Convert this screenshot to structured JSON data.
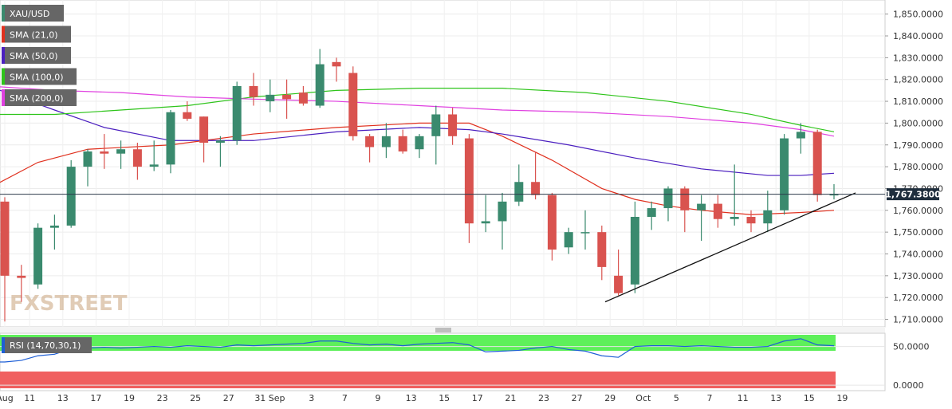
{
  "chart_data": {
    "type": "candlestick",
    "symbol": "XAU/USD",
    "last_price_label": "1,767.3800",
    "last_price": 1767.38,
    "watermark": "FXSTREET",
    "colors": {
      "up": "#3a8a6e",
      "down": "#d9534f",
      "sma21": "#e0301e",
      "sma50": "#4b1fbf",
      "sma100": "#2ec41a",
      "sma200": "#e040e0",
      "rsi": "#1e5fd6",
      "rsi_overbought_zone": "#5ef05a",
      "rsi_oversold_zone": "#f06060",
      "trendline": "#111111",
      "legend_bg": "#666666"
    },
    "legend": [
      {
        "key": "symbol",
        "label": "XAU/USD",
        "color": "#3a8a6e"
      },
      {
        "key": "sma21",
        "label": "SMA (21,0)",
        "color": "#e0301e"
      },
      {
        "key": "sma50",
        "label": "SMA (50,0)",
        "color": "#4b1fbf"
      },
      {
        "key": "sma100",
        "label": "SMA (100,0)",
        "color": "#2ec41a"
      },
      {
        "key": "sma200",
        "label": "SMA (200,0)",
        "color": "#e040e0"
      }
    ],
    "rsi_label": "RSI (14,70,30,1)",
    "y_ticks": [
      "1,710.0000",
      "1,720.0000",
      "1,730.0000",
      "1,740.0000",
      "1,750.0000",
      "1,760.0000",
      "1,770.0000",
      "1,780.0000",
      "1,790.0000",
      "1,800.0000",
      "1,810.0000",
      "1,820.0000",
      "1,830.0000",
      "1,840.0000",
      "1,850.0000"
    ],
    "y_tick_values": [
      1710,
      1720,
      1730,
      1740,
      1750,
      1760,
      1770,
      1780,
      1790,
      1800,
      1810,
      1820,
      1830,
      1840,
      1850
    ],
    "ylim": [
      1708,
      1855
    ],
    "rsi_ticks": [
      "0.0000",
      "50.0000"
    ],
    "rsi_tick_values": [
      0,
      50
    ],
    "rsi_lim": [
      -5,
      65
    ],
    "x_ticks": [
      {
        "label": "Aug",
        "i": 0
      },
      {
        "label": "11",
        "i": 1.5
      },
      {
        "label": "13",
        "i": 3.5
      },
      {
        "label": "17",
        "i": 5.5
      },
      {
        "label": "19",
        "i": 7.5
      },
      {
        "label": "23",
        "i": 9.5
      },
      {
        "label": "25",
        "i": 11.5
      },
      {
        "label": "27",
        "i": 13.5
      },
      {
        "label": "31",
        "i": 15.4
      },
      {
        "label": "Sep",
        "i": 16.4
      },
      {
        "label": "3",
        "i": 18.5
      },
      {
        "label": "7",
        "i": 20.5
      },
      {
        "label": "9",
        "i": 22.5
      },
      {
        "label": "13",
        "i": 24.5
      },
      {
        "label": "15",
        "i": 26.5
      },
      {
        "label": "17",
        "i": 28.5
      },
      {
        "label": "21",
        "i": 30.5
      },
      {
        "label": "23",
        "i": 32.5
      },
      {
        "label": "27",
        "i": 34.5
      },
      {
        "label": "29",
        "i": 36.5
      },
      {
        "label": "Oct",
        "i": 38.5
      },
      {
        "label": "5",
        "i": 40.5
      },
      {
        "label": "7",
        "i": 42.5
      },
      {
        "label": "11",
        "i": 44.5
      },
      {
        "label": "13",
        "i": 46.5
      },
      {
        "label": "15",
        "i": 48.5
      },
      {
        "label": "19",
        "i": 50.5
      }
    ],
    "candles": [
      {
        "o": 1764,
        "h": 1766,
        "l": 1709,
        "c": 1730
      },
      {
        "o": 1730,
        "h": 1735,
        "l": 1718,
        "c": 1729
      },
      {
        "o": 1726,
        "h": 1754,
        "l": 1724,
        "c": 1752
      },
      {
        "o": 1752,
        "h": 1758,
        "l": 1742,
        "c": 1753
      },
      {
        "o": 1753,
        "h": 1783,
        "l": 1752,
        "c": 1780
      },
      {
        "o": 1780,
        "h": 1788,
        "l": 1771,
        "c": 1787
      },
      {
        "o": 1787,
        "h": 1795,
        "l": 1779,
        "c": 1786
      },
      {
        "o": 1786,
        "h": 1792,
        "l": 1779,
        "c": 1788
      },
      {
        "o": 1788,
        "h": 1791,
        "l": 1774,
        "c": 1780
      },
      {
        "o": 1780,
        "h": 1792,
        "l": 1778,
        "c": 1781
      },
      {
        "o": 1781,
        "h": 1806,
        "l": 1777,
        "c": 1805
      },
      {
        "o": 1805,
        "h": 1810,
        "l": 1801,
        "c": 1802
      },
      {
        "o": 1803,
        "h": 1803,
        "l": 1782,
        "c": 1791
      },
      {
        "o": 1791,
        "h": 1794,
        "l": 1780,
        "c": 1792
      },
      {
        "o": 1792,
        "h": 1819,
        "l": 1790,
        "c": 1817
      },
      {
        "o": 1817,
        "h": 1823,
        "l": 1808,
        "c": 1812
      },
      {
        "o": 1810,
        "h": 1820,
        "l": 1805,
        "c": 1813
      },
      {
        "o": 1813,
        "h": 1820,
        "l": 1802,
        "c": 1811
      },
      {
        "o": 1814,
        "h": 1817,
        "l": 1808,
        "c": 1809
      },
      {
        "o": 1808,
        "h": 1834,
        "l": 1807,
        "c": 1827
      },
      {
        "o": 1828,
        "h": 1830,
        "l": 1819,
        "c": 1826
      },
      {
        "o": 1823,
        "h": 1826,
        "l": 1792,
        "c": 1794
      },
      {
        "o": 1794,
        "h": 1795,
        "l": 1782,
        "c": 1789
      },
      {
        "o": 1789,
        "h": 1800,
        "l": 1784,
        "c": 1794
      },
      {
        "o": 1794,
        "h": 1797,
        "l": 1786,
        "c": 1787
      },
      {
        "o": 1788,
        "h": 1795,
        "l": 1784,
        "c": 1794
      },
      {
        "o": 1794,
        "h": 1808,
        "l": 1781,
        "c": 1804
      },
      {
        "o": 1804,
        "h": 1807,
        "l": 1790,
        "c": 1794
      },
      {
        "o": 1793,
        "h": 1795,
        "l": 1745,
        "c": 1754
      },
      {
        "o": 1754,
        "h": 1767,
        "l": 1750,
        "c": 1755
      },
      {
        "o": 1755,
        "h": 1768,
        "l": 1742,
        "c": 1764
      },
      {
        "o": 1764,
        "h": 1781,
        "l": 1762,
        "c": 1773
      },
      {
        "o": 1773,
        "h": 1787,
        "l": 1765,
        "c": 1767
      },
      {
        "o": 1767,
        "h": 1768,
        "l": 1737,
        "c": 1742
      },
      {
        "o": 1743,
        "h": 1752,
        "l": 1740,
        "c": 1750
      },
      {
        "o": 1750,
        "h": 1760,
        "l": 1742,
        "c": 1750
      },
      {
        "o": 1750,
        "h": 1753,
        "l": 1728,
        "c": 1734
      },
      {
        "o": 1730,
        "h": 1742,
        "l": 1721,
        "c": 1722
      },
      {
        "o": 1726,
        "h": 1764,
        "l": 1722,
        "c": 1757
      },
      {
        "o": 1757,
        "h": 1764,
        "l": 1751,
        "c": 1761
      },
      {
        "o": 1761,
        "h": 1771,
        "l": 1755,
        "c": 1770
      },
      {
        "o": 1770,
        "h": 1771,
        "l": 1750,
        "c": 1760
      },
      {
        "o": 1760,
        "h": 1767,
        "l": 1746,
        "c": 1763
      },
      {
        "o": 1763,
        "h": 1767,
        "l": 1752,
        "c": 1756
      },
      {
        "o": 1756,
        "h": 1781,
        "l": 1753,
        "c": 1757
      },
      {
        "o": 1757,
        "h": 1760,
        "l": 1750,
        "c": 1754
      },
      {
        "o": 1754,
        "h": 1769,
        "l": 1750,
        "c": 1760
      },
      {
        "o": 1760,
        "h": 1795,
        "l": 1758,
        "c": 1793
      },
      {
        "o": 1793,
        "h": 1800,
        "l": 1786,
        "c": 1796
      },
      {
        "o": 1796,
        "h": 1797,
        "l": 1764,
        "c": 1767
      },
      {
        "o": 1767,
        "h": 1772,
        "l": 1765,
        "c": 1767.38
      }
    ],
    "series": [
      {
        "name": "SMA (21,0)",
        "key": "sma21",
        "x": [
          -1,
          2,
          5,
          10,
          15,
          20,
          25,
          28,
          30,
          33,
          36,
          38,
          40,
          42,
          45,
          48,
          50
        ],
        "y": [
          1770,
          1782,
          1788,
          1790,
          1795,
          1798,
          1800,
          1800,
          1794,
          1783,
          1770,
          1765,
          1762,
          1760,
          1758,
          1759,
          1760
        ]
      },
      {
        "name": "SMA (50,0)",
        "key": "sma50",
        "x": [
          -1,
          3,
          6,
          10,
          15,
          20,
          25,
          28,
          30,
          34,
          38,
          42,
          46,
          48,
          50
        ],
        "y": [
          1817,
          1806,
          1798,
          1792,
          1792,
          1796,
          1798,
          1797,
          1795,
          1790,
          1784,
          1779,
          1776,
          1776,
          1777
        ]
      },
      {
        "name": "SMA (100,0)",
        "key": "sma100",
        "x": [
          -1,
          3,
          7,
          11,
          15,
          20,
          25,
          30,
          35,
          40,
          45,
          48,
          50
        ],
        "y": [
          1804,
          1804,
          1806,
          1808,
          1812,
          1815,
          1816,
          1816,
          1814,
          1810,
          1804,
          1799,
          1796
        ]
      },
      {
        "name": "SMA (200,0)",
        "key": "sma200",
        "x": [
          -1,
          3,
          7,
          11,
          15,
          20,
          25,
          30,
          35,
          40,
          45,
          48,
          50
        ],
        "y": [
          1817,
          1815,
          1814,
          1812,
          1811,
          1810,
          1808,
          1806,
          1805,
          1803,
          1800,
          1797,
          1794
        ]
      },
      {
        "name": "Trendline",
        "key": "trendline",
        "x": [
          36.2,
          51.3
        ],
        "y": [
          1718,
          1768
        ]
      }
    ],
    "rsi": {
      "x": [
        -1,
        0,
        1,
        2,
        3,
        4,
        5,
        6,
        7,
        8,
        9,
        10,
        11,
        12,
        13,
        14,
        15,
        16,
        17,
        18,
        19,
        20,
        21,
        22,
        23,
        24,
        25,
        26,
        27,
        28,
        29,
        30,
        31,
        32,
        33,
        34,
        35,
        36,
        37,
        38,
        39,
        40,
        41,
        42,
        43,
        44,
        45,
        46,
        47,
        48,
        49,
        50
      ],
      "y": [
        30,
        30,
        32,
        38,
        40,
        47,
        48,
        49,
        48,
        49,
        50,
        49,
        51,
        50,
        49,
        52,
        51,
        52,
        53,
        54,
        57,
        57,
        54,
        52,
        53,
        51,
        53,
        54,
        55,
        52,
        43,
        44,
        45,
        48,
        50,
        46,
        44,
        38,
        36,
        50,
        51,
        51,
        50,
        51,
        50,
        49,
        49,
        50,
        57,
        60,
        52,
        51
      ]
    }
  }
}
